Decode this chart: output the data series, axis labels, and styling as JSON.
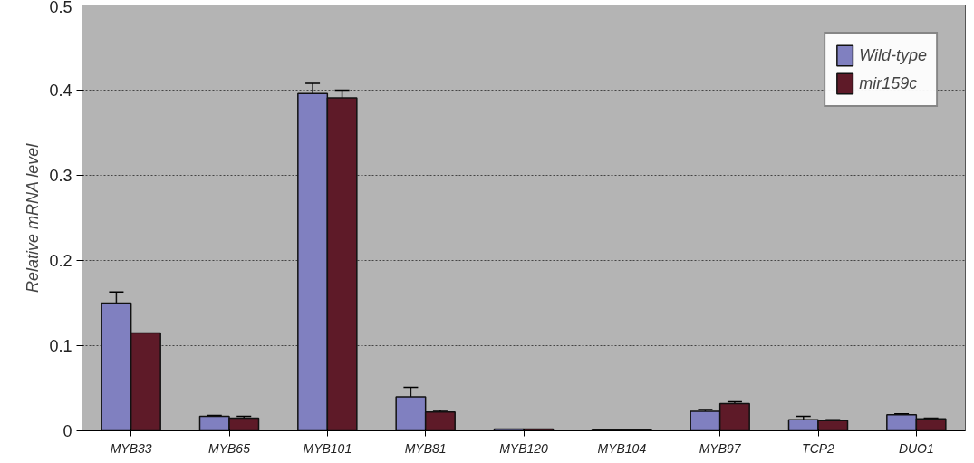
{
  "chart_data": {
    "type": "bar",
    "ylabel": "Relative mRNA level",
    "categories": [
      "MYB33",
      "MYB65",
      "MYB101",
      "MYB81",
      "MYB120",
      "MYB104",
      "MYB97",
      "TCP2",
      "DUO1"
    ],
    "series": [
      {
        "name": "Wild-type",
        "color": "#8080c0",
        "values": [
          0.15,
          0.017,
          0.396,
          0.04,
          0.002,
          0.001,
          0.023,
          0.013,
          0.019
        ],
        "errors": [
          0.013,
          0.001,
          0.012,
          0.011,
          null,
          null,
          0.002,
          0.004,
          0.001
        ]
      },
      {
        "name": "mir159c",
        "color": "#5e1a28",
        "values": [
          0.115,
          0.015,
          0.391,
          0.022,
          0.002,
          0.001,
          0.032,
          0.012,
          0.014
        ],
        "errors": [
          null,
          0.002,
          0.009,
          0.002,
          null,
          null,
          0.002,
          0.001,
          0.001
        ]
      }
    ],
    "ylim": [
      0,
      0.5
    ],
    "yticks": [
      {
        "value": 0,
        "label": "0"
      },
      0.1,
      0.2,
      0.3,
      0.4,
      0.5
    ],
    "grid": "y",
    "legend": "top right"
  }
}
